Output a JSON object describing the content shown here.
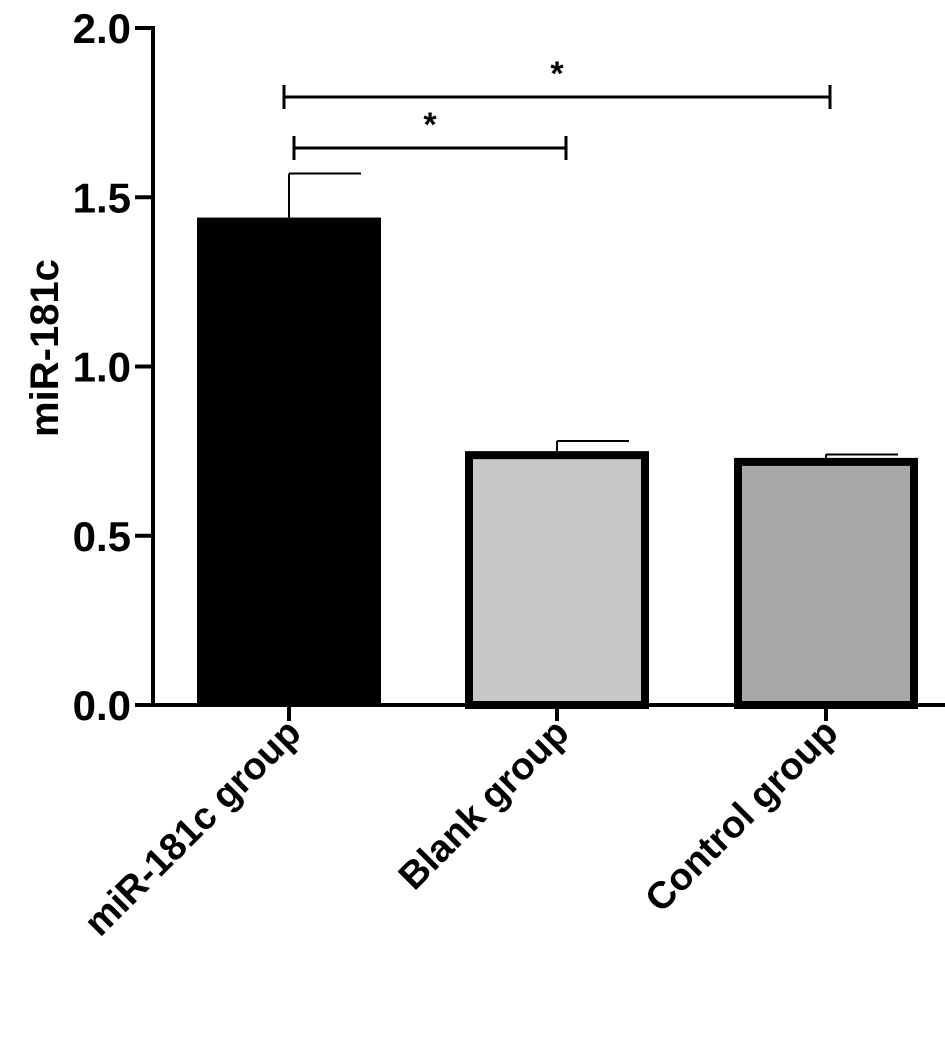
{
  "chart_data": {
    "type": "bar",
    "ylabel": "miR-181c",
    "xlabel": "",
    "ylim": [
      0,
      2.0
    ],
    "yticks": [
      0.0,
      0.5,
      1.0,
      1.5,
      2.0
    ],
    "ytick_labels": [
      "0.0",
      "0.5",
      "1.0",
      "1.5",
      "2.0"
    ],
    "categories": [
      "miR-181c group",
      "Blank group",
      "Control group"
    ],
    "values": [
      1.44,
      0.75,
      0.73
    ],
    "errors": [
      0.13,
      0.03,
      0.01
    ],
    "bar_colors": [
      "#000000",
      "#c8c8c8",
      "#a8a8a8"
    ],
    "significance": [
      {
        "from": "miR-181c group",
        "to": "Blank group",
        "label": "*"
      },
      {
        "from": "miR-181c group",
        "to": "Control group",
        "label": "*"
      }
    ],
    "grid": false,
    "legend": "none"
  }
}
